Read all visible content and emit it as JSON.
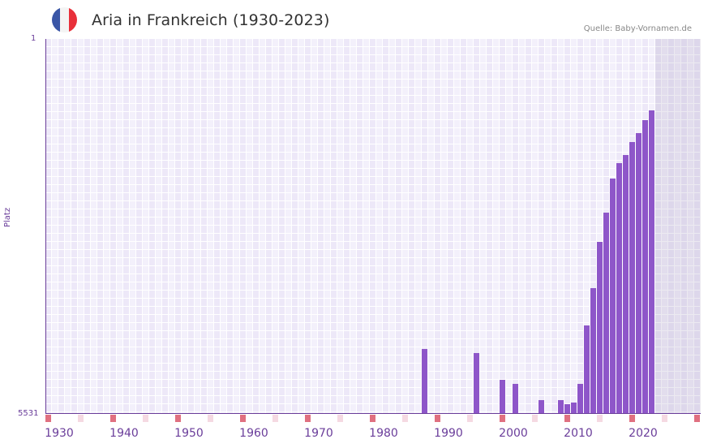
{
  "header": {
    "flag": {
      "name": "france-flag-icon",
      "colors": [
        "#3a56a6",
        "#f4f4f4",
        "#e8303a"
      ]
    },
    "title": "Aria in Frankreich (1930-2023)",
    "source": "Quelle: Baby-Vornamen.de"
  },
  "colors": {
    "bar": "#8e56c9",
    "axis": "#6a3d9a",
    "decade_marker": "#e07080",
    "half_decade_marker": "#f5d9e2"
  },
  "chart_data": {
    "type": "bar",
    "title": "Aria in Frankreich (1930-2023)",
    "xlabel": "",
    "ylabel": "Platz",
    "ylim": [
      5531,
      1
    ],
    "y_inverted": true,
    "y_ticks": [
      "1",
      "5531"
    ],
    "x_ticks": [
      "1930",
      "1940",
      "1950",
      "1960",
      "1970",
      "1980",
      "1990",
      "2000",
      "2010",
      "2020"
    ],
    "x_range": [
      1930,
      2030
    ],
    "grid": true,
    "legend": null,
    "series": [
      {
        "name": "Platz",
        "x": [
          1988,
          1996,
          2000,
          2002,
          2006,
          2009,
          2010,
          2011,
          2012,
          2013,
          2014,
          2015,
          2016,
          2017,
          2018,
          2019,
          2020,
          2021,
          2022,
          2023
        ],
        "values": [
          4573,
          4633,
          5028,
          5088,
          5327,
          5327,
          5386,
          5363,
          5088,
          4226,
          3676,
          2993,
          2562,
          2060,
          1832,
          1713,
          1521,
          1389,
          1198,
          1054
        ]
      }
    ]
  },
  "axis": {
    "y_top": "1",
    "y_bottom": "5531",
    "y_title": "Platz"
  }
}
